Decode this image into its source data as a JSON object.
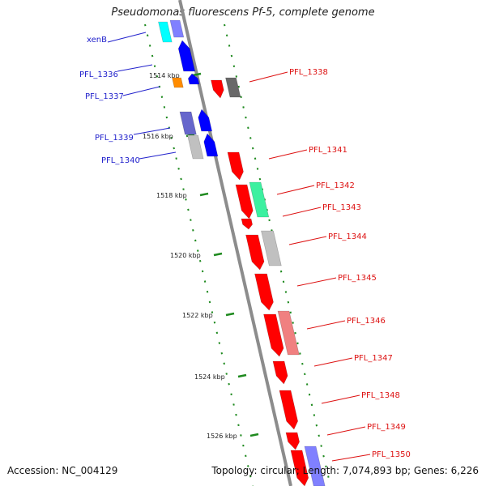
{
  "title": "Pseudomonas fluorescens Pf-5, complete genome",
  "footer": {
    "accession": "Accession: NC_004129",
    "summary": "Topology: circular; Length: 7,074,893 bp; Genes: 6,226"
  },
  "colors": {
    "backbone": "#8c8c8c",
    "tick": "#1f8a1f",
    "reverse_strand_label": "#2222cc",
    "forward_strand_label": "#dd1111"
  },
  "scale_ticks": [
    "1514 kbp",
    "1516 kbp",
    "1518 kbp",
    "1520 kbp",
    "1522 kbp",
    "1524 kbp",
    "1526 kbp"
  ],
  "genes_reverse": [
    {
      "label": "xenB",
      "color": "#2222cc"
    },
    {
      "label": "PFL_1336",
      "color": "#2222cc"
    },
    {
      "label": "PFL_1337",
      "color": "#2222cc"
    },
    {
      "label": "PFL_1339",
      "color": "#2222cc"
    },
    {
      "label": "PFL_1340",
      "color": "#2222cc"
    }
  ],
  "genes_forward": [
    {
      "label": "PFL_1338",
      "color": "#dd1111"
    },
    {
      "label": "PFL_1341",
      "color": "#dd1111"
    },
    {
      "label": "PFL_1342",
      "color": "#dd1111"
    },
    {
      "label": "PFL_1343",
      "color": "#dd1111"
    },
    {
      "label": "PFL_1344",
      "color": "#dd1111"
    },
    {
      "label": "PFL_1345",
      "color": "#dd1111"
    },
    {
      "label": "PFL_1346",
      "color": "#dd1111"
    },
    {
      "label": "PFL_1347",
      "color": "#dd1111"
    },
    {
      "label": "PFL_1348",
      "color": "#dd1111"
    },
    {
      "label": "PFL_1349",
      "color": "#dd1111"
    },
    {
      "label": "PFL_1350",
      "color": "#dd1111"
    }
  ],
  "feature_colors": [
    "#ff0000",
    "#0000ff",
    "#8080ff",
    "#6666cc",
    "#00ffff",
    "#ff8c00",
    "#c0c0c0",
    "#696969",
    "#3cf0a0",
    "#f08080"
  ]
}
